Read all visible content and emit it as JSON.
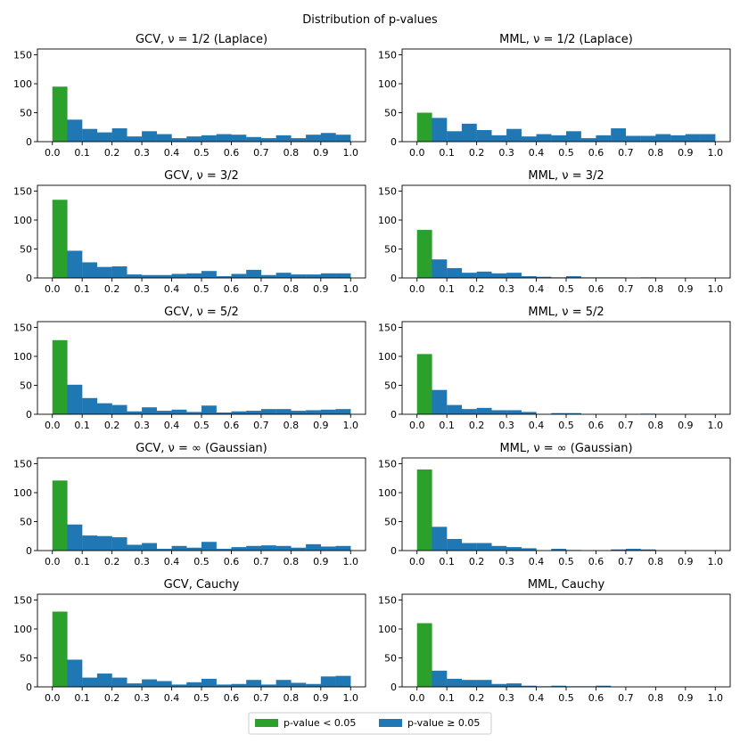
{
  "chart_data": {
    "type": "bar",
    "title": "Distribution of p-values",
    "legend": {
      "placement": "bottom-center",
      "items": [
        {
          "label": "p-value < 0.05",
          "color": "#2ca02c"
        },
        {
          "label": "p-value ≥ 0.05",
          "color": "#1f77b4"
        }
      ]
    },
    "colors": {
      "significant": "#2ca02c",
      "nonsignificant": "#1f77b4"
    },
    "bin_width": 0.05,
    "xlim": [
      -0.05,
      1.05
    ],
    "ylim": [
      0,
      160
    ],
    "xticks": [
      "0.0",
      "0.1",
      "0.2",
      "0.3",
      "0.4",
      "0.5",
      "0.6",
      "0.7",
      "0.8",
      "0.9",
      "1.0"
    ],
    "yticks": [
      "0",
      "50",
      "100",
      "150"
    ],
    "panels": [
      {
        "title": "GCV, ν = 1/2 (Laplace)",
        "values": [
          95,
          38,
          22,
          16,
          23,
          9,
          18,
          13,
          6,
          9,
          11,
          13,
          12,
          8,
          6,
          11,
          6,
          12,
          15,
          12
        ]
      },
      {
        "title": "MML, ν = 1/2 (Laplace)",
        "values": [
          50,
          41,
          18,
          31,
          20,
          11,
          22,
          9,
          13,
          11,
          18,
          6,
          11,
          23,
          10,
          10,
          13,
          11,
          13,
          13
        ]
      },
      {
        "title": "GCV, ν = 3/2",
        "values": [
          135,
          47,
          27,
          19,
          20,
          6,
          5,
          5,
          7,
          8,
          12,
          3,
          7,
          14,
          5,
          9,
          6,
          6,
          8,
          8
        ]
      },
      {
        "title": "MML, ν = 3/2",
        "values": [
          83,
          32,
          17,
          9,
          11,
          8,
          9,
          3,
          2,
          1,
          3,
          1,
          1,
          1,
          0,
          1,
          0,
          0,
          0,
          0
        ]
      },
      {
        "title": "GCV, ν = 5/2",
        "values": [
          128,
          51,
          28,
          19,
          16,
          5,
          12,
          6,
          8,
          4,
          15,
          3,
          5,
          6,
          9,
          9,
          6,
          7,
          8,
          9
        ]
      },
      {
        "title": "MML, ν = 5/2",
        "values": [
          104,
          42,
          16,
          9,
          11,
          7,
          7,
          4,
          0,
          2,
          2,
          0,
          0,
          0,
          0,
          1,
          0,
          0,
          0,
          0
        ]
      },
      {
        "title": "GCV, ν = ∞ (Gaussian)",
        "values": [
          121,
          45,
          26,
          25,
          23,
          10,
          13,
          3,
          8,
          5,
          15,
          3,
          6,
          8,
          9,
          8,
          5,
          11,
          7,
          8
        ]
      },
      {
        "title": "MML, ν = ∞ (Gaussian)",
        "values": [
          140,
          41,
          20,
          13,
          13,
          8,
          6,
          4,
          0,
          3,
          1,
          0,
          0,
          2,
          3,
          2,
          0,
          0,
          0,
          0
        ]
      },
      {
        "title": "GCV, Cauchy",
        "values": [
          130,
          47,
          16,
          23,
          16,
          6,
          13,
          10,
          4,
          8,
          14,
          4,
          5,
          12,
          4,
          12,
          7,
          5,
          18,
          19
        ]
      },
      {
        "title": "MML, Cauchy",
        "values": [
          110,
          28,
          14,
          12,
          12,
          5,
          6,
          2,
          1,
          2,
          1,
          1,
          2,
          0,
          0,
          0,
          0,
          0,
          0,
          0
        ]
      }
    ]
  }
}
